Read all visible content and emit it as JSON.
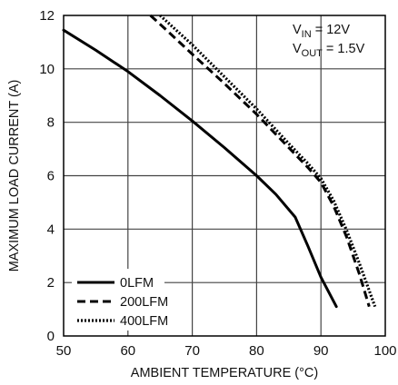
{
  "chart_data": {
    "type": "line",
    "title": "",
    "xlabel": "AMBIENT TEMPERATURE (°C)",
    "ylabel": "MAXIMUM LOAD CURRENT (A)",
    "xlim": [
      50,
      100
    ],
    "ylim": [
      0,
      12
    ],
    "xticks": [
      50,
      60,
      70,
      80,
      90,
      100
    ],
    "yticks": [
      0,
      2,
      4,
      6,
      8,
      10,
      12
    ],
    "grid": true,
    "legend_position": "bottom-left",
    "annotation": {
      "line1_main": "V",
      "line1_sub": "IN",
      "line1_rest": " = 12V",
      "line2_main": "V",
      "line2_sub": "OUT",
      "line2_rest": " = 1.5V",
      "position": "top-right"
    },
    "series": [
      {
        "name": "0LFM",
        "style": "solid",
        "x": [
          50,
          55,
          60,
          65,
          70,
          75,
          80,
          83,
          86,
          88,
          90,
          92.4
        ],
        "y": [
          11.45,
          10.7,
          9.9,
          9.0,
          8.05,
          7.05,
          6.0,
          5.3,
          4.45,
          3.35,
          2.2,
          1.1
        ]
      },
      {
        "name": "200LFM",
        "style": "dashed",
        "x": [
          63.5,
          66,
          70,
          75,
          80,
          85,
          88,
          90,
          92,
          94,
          96,
          97.5
        ],
        "y": [
          12.0,
          11.45,
          10.55,
          9.45,
          8.3,
          7.05,
          6.3,
          5.75,
          4.85,
          3.7,
          2.3,
          1.1
        ]
      },
      {
        "name": "400LFM",
        "style": "dotted",
        "x": [
          65,
          70,
          75,
          80,
          85,
          88,
          90,
          92,
          94,
          96,
          98.4
        ],
        "y": [
          12.0,
          10.9,
          9.7,
          8.5,
          7.2,
          6.45,
          5.9,
          5.05,
          3.95,
          2.7,
          1.1
        ]
      }
    ],
    "colors": {
      "line": "#000000",
      "grid": "#444444",
      "axis": "#000000",
      "text": "#111111"
    }
  }
}
